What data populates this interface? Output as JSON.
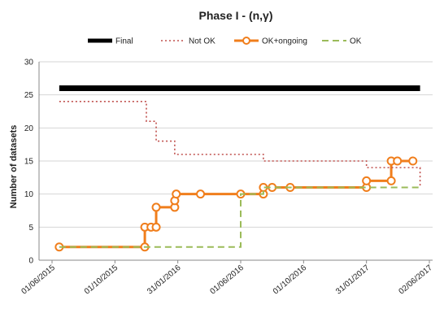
{
  "chart_data": {
    "type": "line",
    "title": "Phase I - (n,γ)",
    "xlabel": "",
    "ylabel": "Number of datasets",
    "x_type": "date",
    "x_ticks": [
      "01/06/2015",
      "01/10/2015",
      "31/01/2016",
      "01/06/2016",
      "01/10/2016",
      "31/01/2017",
      "02/06/2017"
    ],
    "xlim": [
      "2015-06-01",
      "2017-06-02"
    ],
    "ylim": [
      0,
      30
    ],
    "y_ticks": [
      0,
      5,
      10,
      15,
      20,
      25,
      30
    ],
    "grid": "horizontal",
    "legend_position": "top",
    "series": [
      {
        "name": "Final",
        "color": "#000000",
        "style": "solid-thick",
        "step": false,
        "markers": false,
        "points": [
          [
            "2015-06-15",
            26
          ],
          [
            "2017-05-15",
            26
          ]
        ]
      },
      {
        "name": "Not OK",
        "color": "#c0504d",
        "style": "dotted",
        "step": true,
        "markers": false,
        "points": [
          [
            "2015-06-15",
            24
          ],
          [
            "2015-12-01",
            21
          ],
          [
            "2015-12-20",
            18
          ],
          [
            "2016-01-25",
            16
          ],
          [
            "2016-07-15",
            15
          ],
          [
            "2017-01-31",
            14
          ],
          [
            "2017-05-15",
            11
          ]
        ]
      },
      {
        "name": "OK+ongoing",
        "color": "#f07e1c",
        "style": "solid",
        "step": true,
        "markers": true,
        "points": [
          [
            "2015-06-15",
            2
          ],
          [
            "2015-11-28",
            2
          ],
          [
            "2015-11-28",
            5
          ],
          [
            "2015-12-10",
            5
          ],
          [
            "2015-12-20",
            5
          ],
          [
            "2015-12-20",
            8
          ],
          [
            "2016-01-25",
            8
          ],
          [
            "2016-01-25",
            9
          ],
          [
            "2016-01-28",
            10
          ],
          [
            "2016-03-15",
            10
          ],
          [
            "2016-06-01",
            10
          ],
          [
            "2016-07-15",
            10
          ],
          [
            "2016-07-15",
            11
          ],
          [
            "2016-08-01",
            11
          ],
          [
            "2016-09-05",
            11
          ],
          [
            "2017-01-31",
            11
          ],
          [
            "2017-01-31",
            12
          ],
          [
            "2017-03-20",
            12
          ],
          [
            "2017-03-20",
            15
          ],
          [
            "2017-04-01",
            15
          ],
          [
            "2017-05-01",
            15
          ]
        ]
      },
      {
        "name": "OK",
        "color": "#9bbb59",
        "style": "dashed",
        "step": true,
        "markers": false,
        "points": [
          [
            "2015-06-15",
            2
          ],
          [
            "2016-06-01",
            2
          ],
          [
            "2016-06-01",
            10
          ],
          [
            "2016-07-15",
            10
          ],
          [
            "2016-07-15",
            11
          ],
          [
            "2017-05-15",
            11
          ]
        ]
      }
    ]
  }
}
